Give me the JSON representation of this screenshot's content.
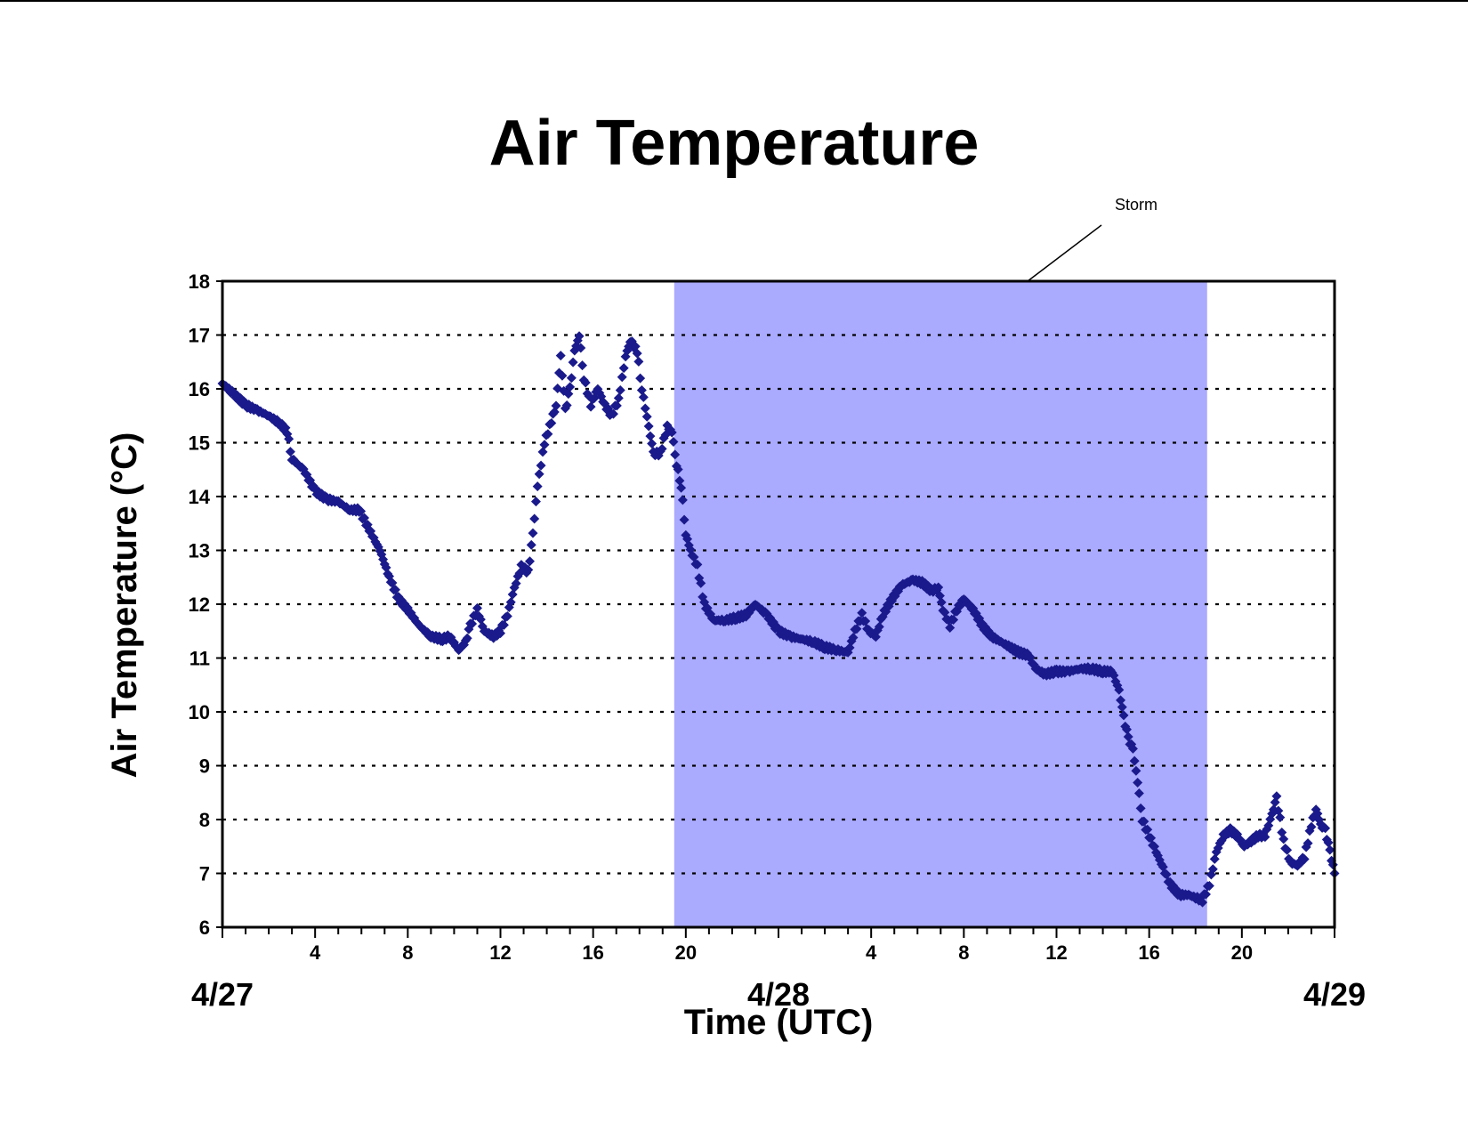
{
  "chart_data": {
    "type": "scatter",
    "title": "Air Temperature",
    "xlabel": "Time (UTC)",
    "ylabel": "Air Temperature (°C)",
    "ylim": [
      6,
      18
    ],
    "yticks": [
      6,
      7,
      8,
      9,
      10,
      11,
      12,
      13,
      14,
      15,
      16,
      17,
      18
    ],
    "xlim_hours": [
      0,
      48
    ],
    "hour_tick_labels": [
      {
        "hour": 4,
        "label": "4"
      },
      {
        "hour": 8,
        "label": "8"
      },
      {
        "hour": 12,
        "label": "12"
      },
      {
        "hour": 16,
        "label": "16"
      },
      {
        "hour": 20,
        "label": "20"
      },
      {
        "hour": 28,
        "label": "4"
      },
      {
        "hour": 32,
        "label": "8"
      },
      {
        "hour": 36,
        "label": "12"
      },
      {
        "hour": 40,
        "label": "16"
      },
      {
        "hour": 44,
        "label": "20"
      }
    ],
    "date_labels": [
      {
        "hour": 0,
        "label": "4/27"
      },
      {
        "hour": 24,
        "label": "4/28"
      },
      {
        "hour": 48,
        "label": "4/29"
      }
    ],
    "grid": "horizontal dotted",
    "storm_band": {
      "label": "Storm",
      "start_hour": 19.5,
      "end_hour": 42.5,
      "color": "#aaaaff"
    },
    "marker_color": "#1a1a8c",
    "series": [
      {
        "points": [
          [
            0,
            16.1
          ],
          [
            0.5,
            15.9
          ],
          [
            1,
            15.7
          ],
          [
            1.5,
            15.6
          ],
          [
            2,
            15.5
          ],
          [
            2.5,
            15.35
          ],
          [
            2.8,
            15.2
          ],
          [
            3,
            14.7
          ],
          [
            3.5,
            14.5
          ],
          [
            4,
            14.1
          ],
          [
            4.5,
            13.95
          ],
          [
            5,
            13.9
          ],
          [
            5.5,
            13.75
          ],
          [
            5.9,
            13.75
          ],
          [
            6.2,
            13.5
          ],
          [
            6.8,
            13.0
          ],
          [
            7.2,
            12.5
          ],
          [
            7.6,
            12.1
          ],
          [
            8,
            11.9
          ],
          [
            8.5,
            11.6
          ],
          [
            9,
            11.4
          ],
          [
            9.5,
            11.35
          ],
          [
            9.8,
            11.4
          ],
          [
            10.2,
            11.15
          ],
          [
            10.5,
            11.3
          ],
          [
            10.7,
            11.6
          ],
          [
            11,
            11.9
          ],
          [
            11.3,
            11.5
          ],
          [
            11.7,
            11.4
          ],
          [
            12,
            11.5
          ],
          [
            12.3,
            11.8
          ],
          [
            12.6,
            12.3
          ],
          [
            12.9,
            12.7
          ],
          [
            13.2,
            12.6
          ],
          [
            13.4,
            13.3
          ],
          [
            13.6,
            14.2
          ],
          [
            13.9,
            15.0
          ],
          [
            14.2,
            15.4
          ],
          [
            14.4,
            15.7
          ],
          [
            14.6,
            16.6
          ],
          [
            14.8,
            15.6
          ],
          [
            15.0,
            16.0
          ],
          [
            15.2,
            16.7
          ],
          [
            15.4,
            17.0
          ],
          [
            15.6,
            16.2
          ],
          [
            15.9,
            15.7
          ],
          [
            16.2,
            16.0
          ],
          [
            16.5,
            15.7
          ],
          [
            16.8,
            15.5
          ],
          [
            17.1,
            15.8
          ],
          [
            17.4,
            16.6
          ],
          [
            17.6,
            16.9
          ],
          [
            17.9,
            16.7
          ],
          [
            18.1,
            16.0
          ],
          [
            18.4,
            15.3
          ],
          [
            18.6,
            14.8
          ],
          [
            18.9,
            14.8
          ],
          [
            19.2,
            15.3
          ],
          [
            19.4,
            15.2
          ],
          [
            19.6,
            14.6
          ],
          [
            19.8,
            14.2
          ],
          [
            20.0,
            13.3
          ],
          [
            20.2,
            13.0
          ],
          [
            20.5,
            12.7
          ],
          [
            20.8,
            12.0
          ],
          [
            21.2,
            11.7
          ],
          [
            21.7,
            11.7
          ],
          [
            22.2,
            11.75
          ],
          [
            22.6,
            11.8
          ],
          [
            23.0,
            12.0
          ],
          [
            23.5,
            11.8
          ],
          [
            24.0,
            11.5
          ],
          [
            24.5,
            11.4
          ],
          [
            25.0,
            11.35
          ],
          [
            25.5,
            11.3
          ],
          [
            26.0,
            11.2
          ],
          [
            26.5,
            11.15
          ],
          [
            27.0,
            11.1
          ],
          [
            27.3,
            11.5
          ],
          [
            27.6,
            11.8
          ],
          [
            27.9,
            11.5
          ],
          [
            28.2,
            11.4
          ],
          [
            28.5,
            11.8
          ],
          [
            28.9,
            12.1
          ],
          [
            29.3,
            12.35
          ],
          [
            29.8,
            12.45
          ],
          [
            30.2,
            12.4
          ],
          [
            30.6,
            12.25
          ],
          [
            30.9,
            12.3
          ],
          [
            31.1,
            11.9
          ],
          [
            31.4,
            11.6
          ],
          [
            31.7,
            11.9
          ],
          [
            32.0,
            12.1
          ],
          [
            32.4,
            11.9
          ],
          [
            32.8,
            11.6
          ],
          [
            33.2,
            11.4
          ],
          [
            33.6,
            11.3
          ],
          [
            34.0,
            11.2
          ],
          [
            34.4,
            11.1
          ],
          [
            34.8,
            11.05
          ],
          [
            35.1,
            10.8
          ],
          [
            35.5,
            10.7
          ],
          [
            36.0,
            10.75
          ],
          [
            36.5,
            10.75
          ],
          [
            37.0,
            10.8
          ],
          [
            37.5,
            10.8
          ],
          [
            38.0,
            10.75
          ],
          [
            38.4,
            10.75
          ],
          [
            38.7,
            10.4
          ],
          [
            38.9,
            9.9
          ],
          [
            39.1,
            9.5
          ],
          [
            39.3,
            9.3
          ],
          [
            39.5,
            8.7
          ],
          [
            39.7,
            8.0
          ],
          [
            40.0,
            7.7
          ],
          [
            40.3,
            7.4
          ],
          [
            40.6,
            7.1
          ],
          [
            40.9,
            6.8
          ],
          [
            41.3,
            6.6
          ],
          [
            41.7,
            6.6
          ],
          [
            42.0,
            6.55
          ],
          [
            42.3,
            6.5
          ],
          [
            42.6,
            6.8
          ],
          [
            42.9,
            7.4
          ],
          [
            43.2,
            7.7
          ],
          [
            43.5,
            7.8
          ],
          [
            43.8,
            7.7
          ],
          [
            44.1,
            7.5
          ],
          [
            44.4,
            7.6
          ],
          [
            44.7,
            7.7
          ],
          [
            45.0,
            7.7
          ],
          [
            45.3,
            8.1
          ],
          [
            45.5,
            8.4
          ],
          [
            45.8,
            7.6
          ],
          [
            46.1,
            7.2
          ],
          [
            46.4,
            7.15
          ],
          [
            46.7,
            7.3
          ],
          [
            47.0,
            7.9
          ],
          [
            47.2,
            8.2
          ],
          [
            47.4,
            7.9
          ],
          [
            47.6,
            7.8
          ],
          [
            47.8,
            7.4
          ],
          [
            48.0,
            7.0
          ]
        ]
      }
    ]
  }
}
